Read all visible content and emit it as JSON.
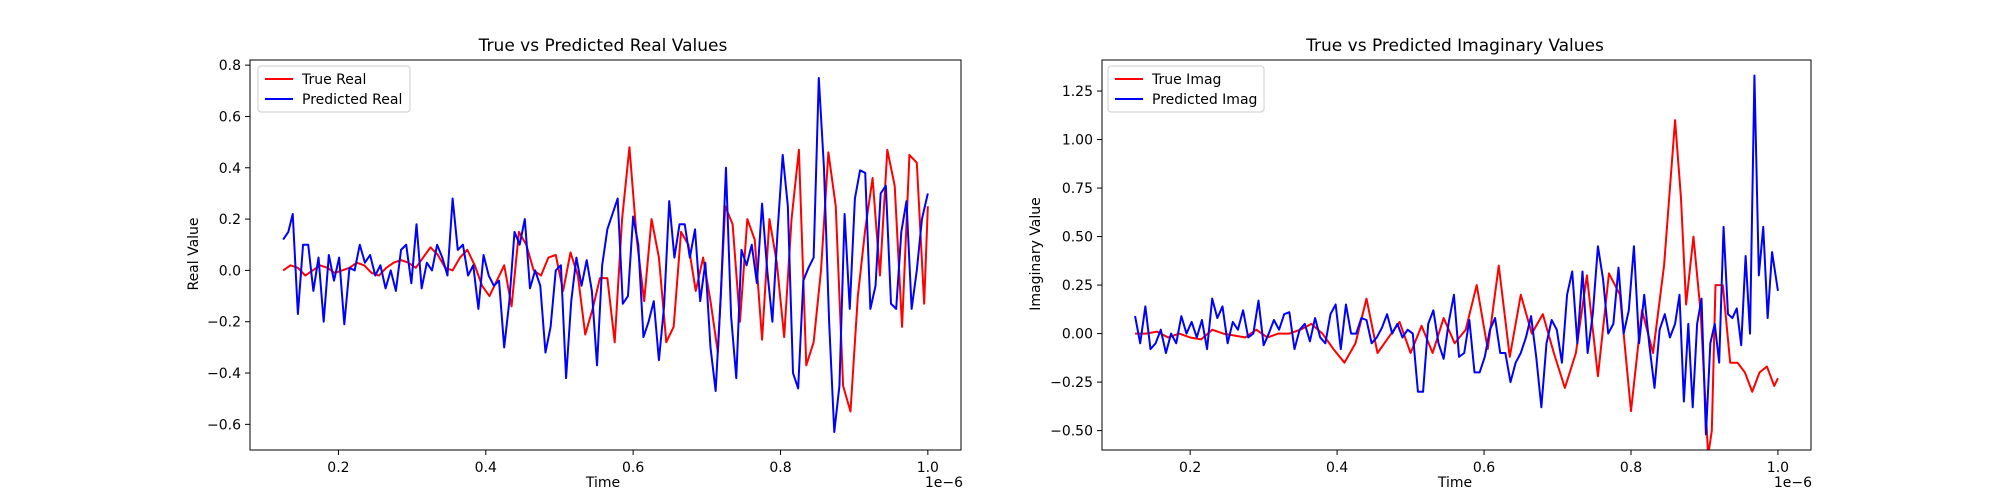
{
  "chart_data": [
    {
      "type": "line",
      "title": "True vs Predicted Real Values",
      "xlabel": "Time",
      "ylabel": "Real Value",
      "x_offset_label": "1e−6",
      "xlim": [
        0.08,
        1.045
      ],
      "ylim": [
        -0.7,
        0.82
      ],
      "xticks": [
        0.2,
        0.4,
        0.6,
        0.8,
        1.0
      ],
      "xtick_labels": [
        "0.2",
        "0.4",
        "0.6",
        "0.8",
        "1.0"
      ],
      "yticks": [
        -0.6,
        -0.4,
        -0.2,
        0.0,
        0.2,
        0.4,
        0.6,
        0.8
      ],
      "ytick_labels": [
        "−0.6",
        "−0.4",
        "−0.2",
        "0.0",
        "0.2",
        "0.4",
        "0.6",
        "0.8"
      ],
      "grid": false,
      "legend_position": "top-left",
      "series": [
        {
          "name": "True Real",
          "color": "#ff0000",
          "x": [
            0.125,
            0.135,
            0.145,
            0.155,
            0.165,
            0.175,
            0.185,
            0.195,
            0.205,
            0.215,
            0.225,
            0.235,
            0.245,
            0.255,
            0.265,
            0.275,
            0.285,
            0.295,
            0.305,
            0.315,
            0.325,
            0.335,
            0.345,
            0.355,
            0.365,
            0.375,
            0.385,
            0.395,
            0.405,
            0.415,
            0.425,
            0.435,
            0.445,
            0.455,
            0.465,
            0.475,
            0.485,
            0.495,
            0.505,
            0.515,
            0.525,
            0.535,
            0.545,
            0.555,
            0.565,
            0.575,
            0.585,
            0.595,
            0.605,
            0.615,
            0.625,
            0.635,
            0.645,
            0.655,
            0.665,
            0.675,
            0.685,
            0.695,
            0.705,
            0.715,
            0.725,
            0.735,
            0.745,
            0.755,
            0.765,
            0.775,
            0.785,
            0.795,
            0.805,
            0.815,
            0.825,
            0.835,
            0.845,
            0.855,
            0.865,
            0.875,
            0.885,
            0.895,
            0.905,
            0.915,
            0.925,
            0.935,
            0.945,
            0.955,
            0.965,
            0.975,
            0.985,
            0.995,
            1.0
          ],
          "values": [
            0.0,
            0.02,
            0.01,
            -0.02,
            0.0,
            0.02,
            0.01,
            -0.01,
            0.0,
            0.01,
            0.03,
            0.02,
            -0.01,
            -0.02,
            0.01,
            0.03,
            0.04,
            0.03,
            0.01,
            0.05,
            0.09,
            0.06,
            0.01,
            0.0,
            0.05,
            0.08,
            0.02,
            -0.06,
            -0.1,
            -0.04,
            0.02,
            -0.14,
            0.15,
            0.1,
            0.0,
            -0.02,
            0.05,
            0.06,
            -0.08,
            0.07,
            -0.02,
            -0.25,
            -0.15,
            -0.03,
            -0.03,
            -0.28,
            0.2,
            0.48,
            0.12,
            -0.12,
            0.2,
            0.05,
            -0.28,
            -0.22,
            0.15,
            0.1,
            -0.08,
            0.05,
            -0.12,
            -0.32,
            0.25,
            0.18,
            -0.2,
            0.2,
            0.12,
            -0.27,
            0.2,
            0.03,
            -0.26,
            0.2,
            0.47,
            -0.37,
            -0.28,
            0.0,
            0.46,
            0.25,
            -0.45,
            -0.55,
            -0.1,
            0.16,
            0.36,
            -0.02,
            0.47,
            0.33,
            -0.22,
            0.45,
            0.42,
            -0.13,
            0.25
          ],
          "label": "True Real"
        },
        {
          "name": "Predicted Real",
          "color": "#0000ff",
          "x": [
            0.125,
            0.132,
            0.138,
            0.145,
            0.152,
            0.159,
            0.166,
            0.173,
            0.18,
            0.187,
            0.194,
            0.201,
            0.208,
            0.215,
            0.222,
            0.229,
            0.236,
            0.243,
            0.25,
            0.257,
            0.264,
            0.271,
            0.278,
            0.285,
            0.292,
            0.299,
            0.306,
            0.313,
            0.32,
            0.327,
            0.334,
            0.341,
            0.348,
            0.355,
            0.362,
            0.369,
            0.376,
            0.383,
            0.39,
            0.397,
            0.404,
            0.411,
            0.418,
            0.425,
            0.432,
            0.439,
            0.446,
            0.453,
            0.46,
            0.467,
            0.474,
            0.481,
            0.488,
            0.495,
            0.502,
            0.509,
            0.516,
            0.523,
            0.53,
            0.537,
            0.544,
            0.551,
            0.558,
            0.565,
            0.572,
            0.579,
            0.586,
            0.593,
            0.6,
            0.607,
            0.614,
            0.621,
            0.628,
            0.635,
            0.642,
            0.649,
            0.656,
            0.663,
            0.67,
            0.677,
            0.684,
            0.691,
            0.698,
            0.705,
            0.712,
            0.719,
            0.726,
            0.733,
            0.74,
            0.747,
            0.754,
            0.761,
            0.768,
            0.775,
            0.782,
            0.789,
            0.796,
            0.803,
            0.81,
            0.817,
            0.824,
            0.831,
            0.838,
            0.845,
            0.852,
            0.859,
            0.866,
            0.873,
            0.88,
            0.887,
            0.894,
            0.901,
            0.908,
            0.915,
            0.922,
            0.929,
            0.936,
            0.943,
            0.95,
            0.957,
            0.964,
            0.971,
            0.978,
            0.985,
            0.992,
            1.0
          ],
          "values": [
            0.12,
            0.15,
            0.22,
            -0.17,
            0.1,
            0.1,
            -0.08,
            0.05,
            -0.2,
            0.06,
            -0.04,
            0.05,
            -0.21,
            0.01,
            0.0,
            0.1,
            0.03,
            0.06,
            -0.02,
            0.02,
            -0.07,
            0.0,
            -0.08,
            0.08,
            0.1,
            -0.05,
            0.18,
            -0.07,
            0.03,
            0.0,
            0.1,
            0.05,
            -0.02,
            0.28,
            0.08,
            0.1,
            -0.02,
            0.02,
            -0.15,
            0.06,
            -0.02,
            -0.06,
            -0.04,
            -0.3,
            -0.12,
            0.15,
            0.1,
            0.2,
            -0.07,
            0.0,
            -0.06,
            -0.32,
            -0.22,
            0.0,
            0.02,
            -0.42,
            -0.12,
            0.05,
            -0.06,
            0.04,
            -0.08,
            -0.37,
            0.02,
            0.16,
            0.22,
            0.28,
            -0.13,
            -0.1,
            0.21,
            0.1,
            -0.26,
            -0.2,
            -0.12,
            -0.35,
            -0.14,
            0.27,
            0.05,
            0.18,
            0.18,
            0.05,
            0.16,
            -0.12,
            0.03,
            -0.3,
            -0.47,
            -0.1,
            0.4,
            -0.18,
            -0.42,
            0.08,
            0.02,
            0.1,
            -0.05,
            0.26,
            0.0,
            -0.2,
            0.15,
            0.45,
            0.25,
            -0.4,
            -0.46,
            -0.04,
            0.01,
            0.05,
            0.75,
            0.4,
            -0.2,
            -0.63,
            -0.45,
            0.22,
            -0.15,
            0.28,
            0.39,
            0.38,
            -0.15,
            -0.06,
            0.3,
            0.33,
            -0.13,
            -0.15,
            0.15,
            0.27,
            -0.15,
            0.0,
            0.2,
            0.3
          ],
          "label": "Predicted Real"
        }
      ]
    },
    {
      "type": "line",
      "title": "True vs Predicted Imaginary Values",
      "xlabel": "Time",
      "ylabel": "Imaginary Value",
      "x_offset_label": "1e−6",
      "xlim": [
        0.08,
        1.045
      ],
      "ylim": [
        -0.6,
        1.41
      ],
      "xticks": [
        0.2,
        0.4,
        0.6,
        0.8,
        1.0
      ],
      "xtick_labels": [
        "0.2",
        "0.4",
        "0.6",
        "0.8",
        "1.0"
      ],
      "yticks": [
        -0.5,
        -0.25,
        0.0,
        0.25,
        0.5,
        0.75,
        1.0,
        1.25
      ],
      "ytick_labels": [
        "−0.50",
        "−0.25",
        "0.00",
        "0.25",
        "0.50",
        "0.75",
        "1.00",
        "1.25"
      ],
      "grid": false,
      "legend_position": "top-left",
      "series": [
        {
          "name": "True Imag",
          "color": "#ff0000",
          "x": [
            0.125,
            0.14,
            0.155,
            0.17,
            0.185,
            0.2,
            0.215,
            0.23,
            0.245,
            0.26,
            0.275,
            0.29,
            0.305,
            0.32,
            0.335,
            0.35,
            0.365,
            0.38,
            0.395,
            0.41,
            0.425,
            0.44,
            0.455,
            0.47,
            0.485,
            0.5,
            0.515,
            0.53,
            0.545,
            0.56,
            0.575,
            0.59,
            0.605,
            0.62,
            0.635,
            0.65,
            0.665,
            0.68,
            0.695,
            0.71,
            0.725,
            0.74,
            0.755,
            0.77,
            0.785,
            0.8,
            0.815,
            0.83,
            0.845,
            0.86,
            0.868,
            0.875,
            0.885,
            0.895,
            0.905,
            0.91,
            0.915,
            0.925,
            0.935,
            0.945,
            0.955,
            0.965,
            0.975,
            0.985,
            0.995,
            1.0
          ],
          "values": [
            0.0,
            0.0,
            0.01,
            -0.02,
            0.0,
            -0.02,
            -0.03,
            0.02,
            0.0,
            -0.01,
            -0.02,
            0.02,
            -0.02,
            0.0,
            0.0,
            0.02,
            0.05,
            0.0,
            -0.08,
            -0.15,
            -0.05,
            0.18,
            -0.1,
            -0.02,
            0.06,
            -0.1,
            0.04,
            -0.1,
            0.08,
            -0.05,
            0.02,
            0.25,
            -0.08,
            0.35,
            -0.12,
            0.2,
            0.0,
            0.1,
            -0.1,
            -0.28,
            -0.1,
            0.3,
            -0.22,
            0.31,
            0.2,
            -0.4,
            0.12,
            -0.1,
            0.35,
            1.1,
            0.7,
            0.15,
            0.5,
            0.1,
            -0.63,
            -0.5,
            0.25,
            0.25,
            -0.15,
            -0.15,
            -0.2,
            -0.3,
            -0.2,
            -0.17,
            -0.27,
            -0.23
          ],
          "label": "True Imag"
        },
        {
          "name": "Predicted Imag",
          "color": "#0000ff",
          "x": [
            0.125,
            0.132,
            0.139,
            0.146,
            0.153,
            0.16,
            0.167,
            0.174,
            0.181,
            0.188,
            0.195,
            0.202,
            0.209,
            0.216,
            0.223,
            0.23,
            0.237,
            0.244,
            0.251,
            0.258,
            0.265,
            0.272,
            0.279,
            0.286,
            0.293,
            0.3,
            0.307,
            0.314,
            0.321,
            0.328,
            0.335,
            0.342,
            0.349,
            0.356,
            0.363,
            0.37,
            0.377,
            0.384,
            0.391,
            0.398,
            0.405,
            0.412,
            0.419,
            0.426,
            0.433,
            0.44,
            0.447,
            0.454,
            0.461,
            0.468,
            0.475,
            0.482,
            0.489,
            0.496,
            0.503,
            0.51,
            0.517,
            0.524,
            0.531,
            0.538,
            0.545,
            0.552,
            0.559,
            0.566,
            0.573,
            0.58,
            0.587,
            0.594,
            0.601,
            0.608,
            0.615,
            0.622,
            0.629,
            0.636,
            0.643,
            0.65,
            0.657,
            0.664,
            0.671,
            0.678,
            0.685,
            0.692,
            0.699,
            0.706,
            0.713,
            0.72,
            0.727,
            0.734,
            0.741,
            0.748,
            0.755,
            0.762,
            0.769,
            0.776,
            0.783,
            0.79,
            0.797,
            0.804,
            0.811,
            0.818,
            0.825,
            0.832,
            0.839,
            0.846,
            0.853,
            0.86,
            0.866,
            0.872,
            0.878,
            0.884,
            0.89,
            0.896,
            0.902,
            0.908,
            0.914,
            0.92,
            0.926,
            0.932,
            0.938,
            0.944,
            0.95,
            0.956,
            0.962,
            0.968,
            0.974,
            0.98,
            0.986,
            0.992,
            1.0
          ],
          "values": [
            0.09,
            -0.05,
            0.14,
            -0.08,
            -0.05,
            0.02,
            -0.1,
            0.0,
            -0.05,
            0.09,
            0.0,
            0.06,
            -0.02,
            0.07,
            -0.08,
            0.18,
            0.08,
            0.14,
            -0.05,
            0.06,
            0.02,
            0.12,
            -0.02,
            0.0,
            0.17,
            -0.06,
            0.0,
            0.07,
            0.02,
            0.1,
            0.11,
            -0.08,
            0.02,
            0.05,
            -0.04,
            0.08,
            -0.02,
            -0.05,
            0.1,
            0.15,
            -0.08,
            0.15,
            0.0,
            0.0,
            0.08,
            0.07,
            -0.05,
            -0.02,
            0.03,
            0.1,
            0.0,
            0.05,
            -0.02,
            0.02,
            0.0,
            -0.3,
            -0.3,
            0.05,
            0.12,
            -0.05,
            -0.13,
            0.06,
            0.2,
            -0.12,
            -0.1,
            0.07,
            -0.2,
            -0.2,
            -0.12,
            0.02,
            0.08,
            -0.1,
            -0.1,
            -0.25,
            -0.15,
            -0.1,
            -0.02,
            0.09,
            -0.12,
            -0.38,
            -0.05,
            0.07,
            0.02,
            -0.15,
            0.2,
            0.32,
            -0.05,
            0.32,
            -0.1,
            0.1,
            0.45,
            0.28,
            0.0,
            0.05,
            0.34,
            0.0,
            0.12,
            0.45,
            -0.05,
            0.2,
            -0.06,
            -0.28,
            0.02,
            0.1,
            -0.02,
            0.05,
            0.2,
            -0.35,
            0.05,
            -0.38,
            0.05,
            0.18,
            -0.52,
            -0.05,
            0.05,
            -0.15,
            0.55,
            0.1,
            0.08,
            0.13,
            -0.06,
            0.4,
            0.0,
            1.33,
            0.3,
            0.55,
            0.08,
            0.42,
            0.22
          ],
          "label": "Predicted Imag"
        }
      ]
    }
  ]
}
